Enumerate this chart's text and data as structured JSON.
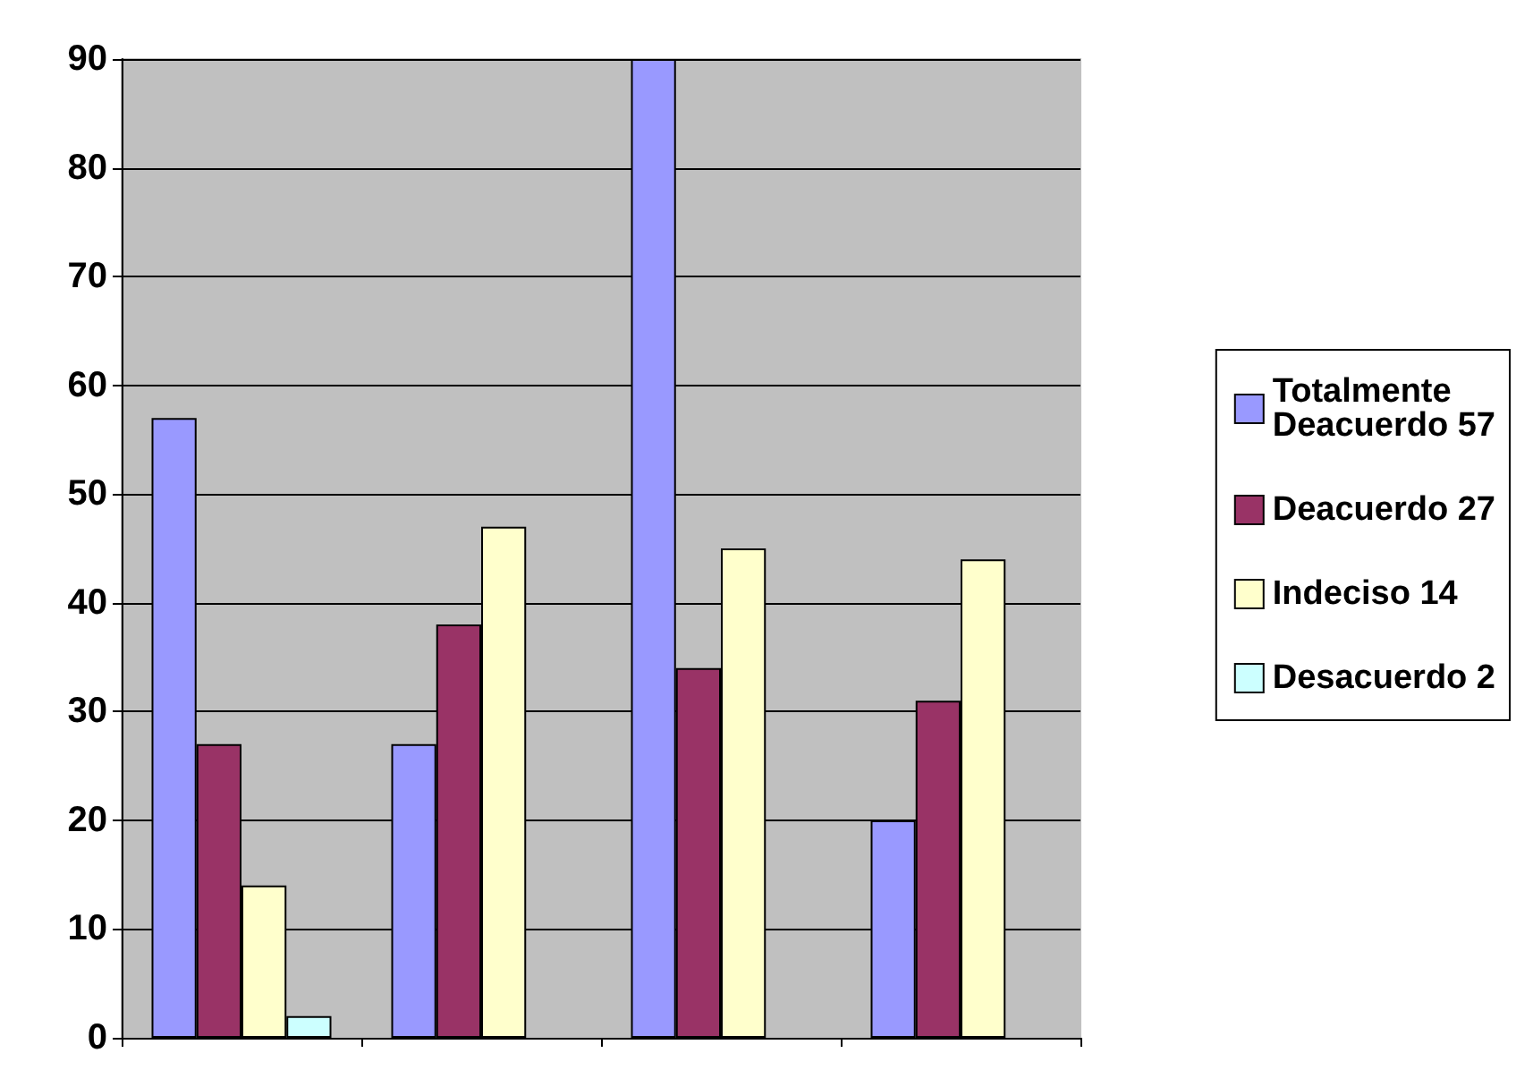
{
  "chart_data": {
    "type": "bar",
    "categories": [
      null,
      null,
      null,
      null
    ],
    "series": [
      {
        "name": "Totalmente Deacuerdo 57",
        "color": "#9999ff",
        "values": [
          57,
          27,
          90,
          20
        ]
      },
      {
        "name": "Deacuerdo 27",
        "color": "#993366",
        "values": [
          27,
          38,
          34,
          31
        ]
      },
      {
        "name": "Indeciso 14",
        "color": "#ffffcc",
        "values": [
          14,
          47,
          45,
          44
        ]
      },
      {
        "name": "Desacuerdo 2",
        "color": "#ccffff",
        "values": [
          2,
          null,
          null,
          null
        ]
      }
    ],
    "ylim": [
      0,
      90
    ],
    "yticks": [
      0,
      10,
      20,
      30,
      40,
      50,
      60,
      70,
      80,
      90
    ],
    "grid": "y",
    "legend": "right"
  }
}
